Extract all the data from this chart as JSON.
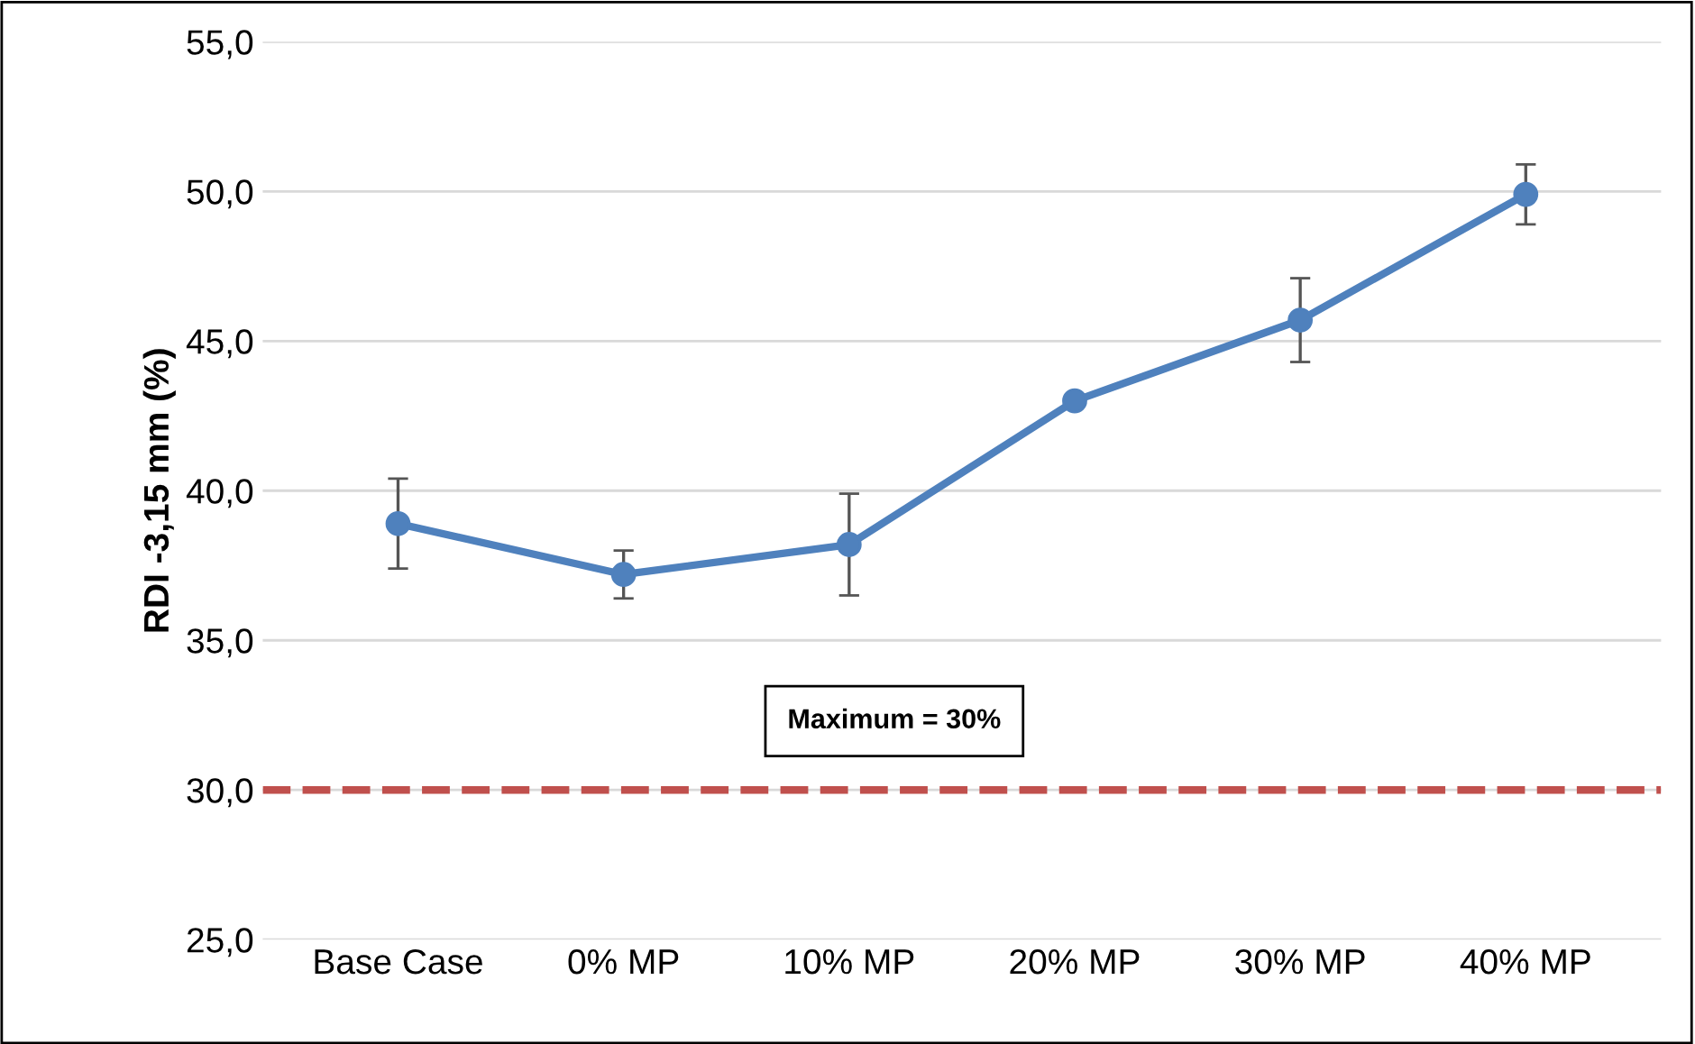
{
  "chart_data": {
    "type": "line",
    "ylabel": "RDI -3,15 mm (%)",
    "categories": [
      "Base Case",
      "0% MP",
      "10% MP",
      "20% MP",
      "30% MP",
      "40% MP"
    ],
    "series": [
      {
        "color": "#4f81bd",
        "values": [
          38.9,
          37.2,
          38.2,
          43.0,
          45.7,
          49.9
        ],
        "errors": [
          [
            37.4,
            40.4
          ],
          [
            36.4,
            38.0
          ],
          [
            36.5,
            39.9
          ],
          null,
          [
            44.3,
            47.1
          ],
          [
            48.9,
            50.9
          ]
        ]
      }
    ],
    "ylim": [
      25,
      55
    ],
    "yticks": [
      {
        "value": 25,
        "label": "25,0"
      },
      {
        "value": 30,
        "label": "30,0"
      },
      {
        "value": 35,
        "label": "35,0"
      },
      {
        "value": 40,
        "label": "40,0"
      },
      {
        "value": 45,
        "label": "45,0"
      },
      {
        "value": 50,
        "label": "50,0"
      },
      {
        "value": 55,
        "label": "55,0"
      }
    ],
    "ref_lines": [
      {
        "axis": "y",
        "value": 30,
        "label": "Maximum = 30%",
        "color": "#c0504d",
        "line_style": "dashed"
      }
    ],
    "grid": "y",
    "marker": "circle",
    "line_style": "solid",
    "legend": false
  }
}
